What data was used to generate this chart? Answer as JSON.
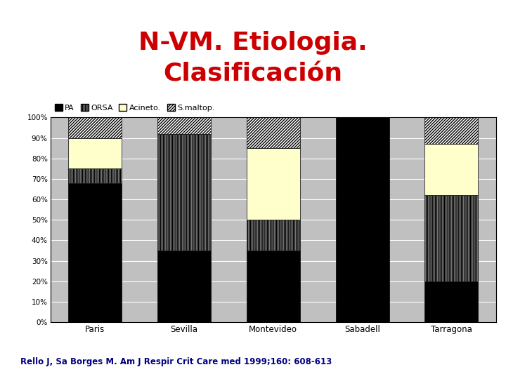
{
  "title": "N-VM. Etiologia.\nClasificación",
  "title_color": "#cc0000",
  "title_fontsize": 26,
  "categories": [
    "Paris",
    "Sevilla",
    "Montevideo",
    "Sabadell",
    "Tarragona"
  ],
  "series": {
    "PA": [
      68,
      35,
      35,
      100,
      20
    ],
    "ORSA": [
      7,
      57,
      15,
      0,
      42
    ],
    "Acineto.": [
      15,
      0,
      35,
      0,
      25
    ],
    "S.maltop.": [
      10,
      8,
      15,
      0,
      13
    ]
  },
  "legend_labels": [
    "PA",
    "ORSA",
    "Acineto.",
    "S.maltop."
  ],
  "plot_bg_color": "#c0c0c0",
  "footer_text": "Rello J, Sa Borges M. Am J Respir Crit Care med 1999;160: 608-613",
  "footer_bg": "#0000ff",
  "footer_color": "#000080",
  "bar_width": 0.6,
  "ylim": [
    0,
    100
  ],
  "yticks": [
    0,
    10,
    20,
    30,
    40,
    50,
    60,
    70,
    80,
    90,
    100
  ],
  "ytick_labels": [
    "0%",
    "10%",
    "20%",
    "30%",
    "40%",
    "50%",
    "60%",
    "70%",
    "80%",
    "90%",
    "100%"
  ]
}
